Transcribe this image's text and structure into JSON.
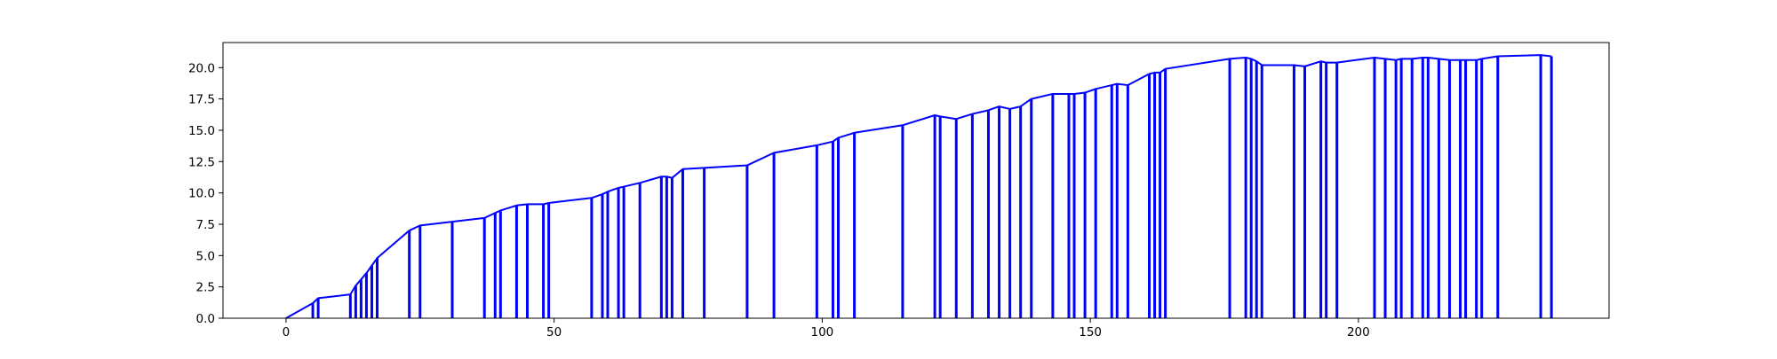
{
  "chart_data": {
    "type": "line",
    "title": "",
    "xlabel": "",
    "ylabel": "",
    "xlim": [
      -11.75,
      246.75
    ],
    "ylim": [
      0,
      22
    ],
    "grid": false,
    "legend": "none",
    "x_ticks": [
      {
        "value": 0,
        "label": "0"
      },
      {
        "value": 50,
        "label": "50"
      },
      {
        "value": 100,
        "label": "100"
      },
      {
        "value": 150,
        "label": "150"
      },
      {
        "value": 200,
        "label": "200"
      }
    ],
    "y_ticks": [
      {
        "value": 0,
        "label": "0.0"
      },
      {
        "value": 2.5,
        "label": "2.5"
      },
      {
        "value": 5,
        "label": "5.0"
      },
      {
        "value": 7.5,
        "label": "7.5"
      },
      {
        "value": 10,
        "label": "10.0"
      },
      {
        "value": 12.5,
        "label": "12.5"
      },
      {
        "value": 15,
        "label": "15.0"
      },
      {
        "value": 17.5,
        "label": "17.5"
      },
      {
        "value": 20,
        "label": "20.0"
      }
    ],
    "series": [
      {
        "color": "#0000ff",
        "x": [
          0,
          5,
          6,
          12,
          13,
          14,
          15,
          16,
          17,
          23,
          25,
          31,
          37,
          39,
          40,
          43,
          45,
          48,
          49,
          57,
          59,
          60,
          62,
          63,
          66,
          70,
          71,
          72,
          74,
          78,
          86,
          91,
          99,
          102,
          103,
          106,
          115,
          121,
          122,
          125,
          128,
          131,
          133,
          135,
          137,
          139,
          143,
          146,
          147,
          149,
          151,
          154,
          155,
          157,
          161,
          162,
          163,
          164,
          176,
          179,
          180,
          181,
          182,
          188,
          190,
          193,
          194,
          196,
          203,
          205,
          207,
          208,
          210,
          212,
          213,
          215,
          217,
          219,
          220,
          222,
          223,
          226,
          234,
          236
        ],
        "values": [
          0.0,
          1.2,
          1.6,
          1.9,
          2.6,
          3.1,
          3.6,
          4.2,
          4.8,
          7.0,
          7.4,
          7.7,
          8.0,
          8.4,
          8.6,
          9.0,
          9.1,
          9.1,
          9.2,
          9.6,
          9.9,
          10.1,
          10.4,
          10.5,
          10.8,
          11.3,
          11.3,
          11.2,
          11.9,
          12.0,
          12.2,
          13.2,
          13.8,
          14.1,
          14.4,
          14.8,
          15.4,
          16.2,
          16.1,
          15.9,
          16.3,
          16.6,
          16.9,
          16.7,
          16.9,
          17.5,
          17.9,
          17.9,
          17.9,
          18.0,
          18.3,
          18.6,
          18.7,
          18.6,
          19.5,
          19.6,
          19.6,
          19.9,
          20.7,
          20.8,
          20.7,
          20.5,
          20.2,
          20.2,
          20.1,
          20.5,
          20.4,
          20.4,
          20.8,
          20.7,
          20.6,
          20.7,
          20.7,
          20.8,
          20.8,
          20.7,
          20.6,
          20.6,
          20.6,
          20.6,
          20.7,
          20.9,
          21.0,
          20.9
        ]
      }
    ]
  }
}
